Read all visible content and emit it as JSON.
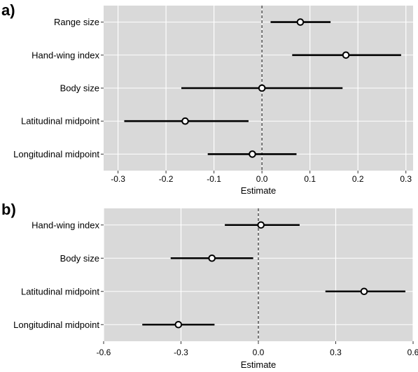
{
  "chart_data": [
    {
      "type": "forest",
      "panel_label": "a)",
      "categories": [
        "Range size",
        "Hand-wing index",
        "Body size",
        "Latitudinal midpoint",
        "Longitudinal midpoint"
      ],
      "estimates": [
        0.08,
        0.175,
        0.0,
        -0.16,
        -0.02
      ],
      "ci_low": [
        0.018,
        0.063,
        -0.168,
        -0.287,
        -0.113
      ],
      "ci_high": [
        0.143,
        0.29,
        0.168,
        -0.028,
        0.072
      ],
      "xticks": [
        -0.3,
        -0.2,
        -0.1,
        0.0,
        0.1,
        0.2,
        0.3
      ],
      "xtick_labels": [
        "-0.3",
        "-0.2",
        "-0.1",
        "0.0",
        "0.1",
        "0.2",
        "0.3"
      ],
      "xlim": [
        -0.33,
        0.315
      ],
      "xlabel": "Estimate",
      "reference_line": 0,
      "grid": true,
      "colors": {
        "panel_bg": "#d9d9d9",
        "grid": "#ffffff",
        "line": "#000000",
        "marker_fill": "#ffffff"
      }
    },
    {
      "type": "forest",
      "panel_label": "b)",
      "categories": [
        "Hand-wing index",
        "Body size",
        "Latitudinal midpoint",
        "Longitudinal midpoint"
      ],
      "estimates": [
        0.01,
        -0.18,
        0.41,
        -0.31
      ],
      "ci_low": [
        -0.13,
        -0.34,
        0.26,
        -0.45
      ],
      "ci_high": [
        0.16,
        -0.02,
        0.57,
        -0.17
      ],
      "xticks": [
        -0.6,
        -0.3,
        0.0,
        0.3,
        0.6
      ],
      "xtick_labels": [
        "-0.6",
        "-0.3",
        "0.0",
        "0.3",
        "0.6"
      ],
      "xlim": [
        -0.6,
        0.6
      ],
      "xlabel": "Estimate",
      "reference_line": 0,
      "grid": true,
      "colors": {
        "panel_bg": "#d9d9d9",
        "grid": "#ffffff",
        "line": "#000000",
        "marker_fill": "#ffffff"
      }
    }
  ]
}
